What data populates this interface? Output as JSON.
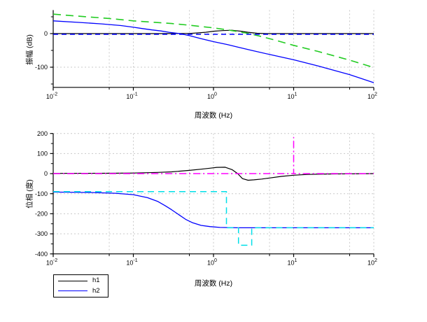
{
  "figure": {
    "background": "#ffffff",
    "xlabel": "周波数 (Hz)",
    "mag_ylabel": "振幅 (dB)",
    "phase_ylabel": "位相 (度)"
  },
  "legend": {
    "position": "below-left",
    "entries": [
      {
        "label": "h1",
        "color": "#000000",
        "style": "solid"
      },
      {
        "label": "h2",
        "color": "#0000ff",
        "style": "solid"
      }
    ]
  },
  "colors": {
    "axis": "#000000",
    "grid": "#c9c9c9",
    "h1": "#000000",
    "h2": "#0000ff",
    "mag_model_green": "#22cc22",
    "mag_model_blue": "#0000ff",
    "phase_model_magenta": "#ff00ff",
    "phase_model_cyan": "#00dfe8"
  },
  "chart_data": [
    {
      "type": "line",
      "subplot": "magnitude",
      "title": "",
      "xlabel": "周波数 (Hz)",
      "ylabel": "振幅 (dB)",
      "xscale": "log",
      "xlim": [
        0.01,
        100
      ],
      "ylim": [
        -160,
        70
      ],
      "grid": true,
      "xticks": [
        {
          "value": 0.01,
          "base": "10",
          "exp": "-2"
        },
        {
          "value": 0.1,
          "base": "10",
          "exp": "-1"
        },
        {
          "value": 1,
          "base": "10",
          "exp": "0"
        },
        {
          "value": 10,
          "base": "10",
          "exp": "1"
        },
        {
          "value": 100,
          "base": "10",
          "exp": "2"
        }
      ],
      "xticks_minor": [
        0.05,
        0.5,
        5,
        50
      ],
      "yticks": [
        {
          "value": 0,
          "label": "0"
        },
        {
          "value": -100,
          "label": "-100"
        }
      ],
      "yticks_minor": [
        50,
        -50,
        -150
      ],
      "grid_x": [
        0.05,
        0.1,
        0.5,
        1,
        5,
        10,
        50,
        100
      ],
      "grid_y": [
        0,
        -100
      ],
      "series": [
        {
          "name": "h1",
          "color": "#000000",
          "dash": null,
          "width": 1.2,
          "points": [
            [
              0.01,
              0
            ],
            [
              0.2,
              0
            ],
            [
              0.5,
              0.5
            ],
            [
              0.8,
              4
            ],
            [
              1.0,
              7
            ],
            [
              1.3,
              9
            ],
            [
              1.7,
              10
            ],
            [
              2.2,
              7
            ],
            [
              2.7,
              4
            ],
            [
              3.5,
              1
            ],
            [
              4.5,
              0
            ],
            [
              10,
              0
            ],
            [
              100,
              0
            ]
          ]
        },
        {
          "name": "h2",
          "color": "#0000ff",
          "dash": null,
          "width": 1.3,
          "points": [
            [
              0.01,
              38
            ],
            [
              0.02,
              33.5
            ],
            [
              0.04,
              29
            ],
            [
              0.07,
              24
            ],
            [
              0.1,
              19
            ],
            [
              0.13,
              15
            ],
            [
              0.17,
              11
            ],
            [
              0.22,
              8
            ],
            [
              0.28,
              4
            ],
            [
              0.38,
              0
            ],
            [
              0.5,
              -6
            ],
            [
              0.7,
              -15
            ],
            [
              1,
              -24
            ],
            [
              1.5,
              -33
            ],
            [
              2,
              -40
            ],
            [
              3,
              -50
            ],
            [
              5,
              -62
            ],
            [
              10,
              -78
            ],
            [
              20,
              -96
            ],
            [
              50,
              -122
            ],
            [
              100,
              -146
            ]
          ]
        },
        {
          "name": "model-green-dashed",
          "color": "#22cc22",
          "dash": "11,7",
          "width": 1.6,
          "points": [
            [
              0.01,
              58
            ],
            [
              0.02,
              52
            ],
            [
              0.05,
              45
            ],
            [
              0.1,
              38
            ],
            [
              0.2,
              33
            ],
            [
              0.3,
              30
            ],
            [
              0.5,
              25
            ],
            [
              0.7,
              21
            ],
            [
              1,
              17
            ],
            [
              1.5,
              11
            ],
            [
              2,
              6
            ],
            [
              2.8,
              0
            ],
            [
              4,
              -9
            ],
            [
              6,
              -20
            ],
            [
              10,
              -35
            ],
            [
              20,
              -53
            ],
            [
              50,
              -79
            ],
            [
              100,
              -101
            ]
          ]
        },
        {
          "name": "model-blue-dashed",
          "color": "#0000ff",
          "dash": "7,5",
          "width": 1.4,
          "points": [
            [
              0.01,
              -2
            ],
            [
              100,
              -2
            ]
          ]
        }
      ]
    },
    {
      "type": "line",
      "subplot": "phase",
      "title": "",
      "xlabel": "周波数 (Hz)",
      "ylabel": "位相 (度)",
      "xscale": "log",
      "xlim": [
        0.01,
        100
      ],
      "ylim": [
        -400,
        200
      ],
      "grid": true,
      "xticks": [
        {
          "value": 0.01,
          "base": "10",
          "exp": "-2"
        },
        {
          "value": 0.1,
          "base": "10",
          "exp": "-1"
        },
        {
          "value": 1,
          "base": "10",
          "exp": "0"
        },
        {
          "value": 10,
          "base": "10",
          "exp": "1"
        },
        {
          "value": 100,
          "base": "10",
          "exp": "2"
        }
      ],
      "xticks_minor": [
        0.05,
        0.5,
        5,
        50
      ],
      "yticks": [
        {
          "value": 200,
          "label": "200"
        },
        {
          "value": 100,
          "label": "100"
        },
        {
          "value": 0,
          "label": "0"
        },
        {
          "value": -100,
          "label": "-100"
        },
        {
          "value": -200,
          "label": "-200"
        },
        {
          "value": -300,
          "label": "-300"
        },
        {
          "value": -400,
          "label": "-400"
        }
      ],
      "yticks_minor": [
        150,
        50,
        -50,
        -150,
        -250,
        -350
      ],
      "grid_x": [
        0.05,
        0.1,
        0.5,
        1,
        5,
        10,
        50,
        100
      ],
      "grid_y": [
        200,
        100,
        0,
        -100,
        -200,
        -300
      ],
      "series": [
        {
          "name": "h1",
          "color": "#000000",
          "dash": null,
          "width": 1.2,
          "points": [
            [
              0.01,
              1
            ],
            [
              0.05,
              2
            ],
            [
              0.1,
              3
            ],
            [
              0.2,
              6
            ],
            [
              0.3,
              9
            ],
            [
              0.5,
              16
            ],
            [
              0.7,
              22
            ],
            [
              0.9,
              27
            ],
            [
              1.1,
              31
            ],
            [
              1.4,
              32
            ],
            [
              1.7,
              20
            ],
            [
              2.0,
              0
            ],
            [
              2.3,
              -25
            ],
            [
              2.7,
              -33
            ],
            [
              3.2,
              -31
            ],
            [
              4,
              -27
            ],
            [
              5,
              -22
            ],
            [
              7,
              -14
            ],
            [
              10,
              -8
            ],
            [
              15,
              -4
            ],
            [
              25,
              -2
            ],
            [
              50,
              -1
            ],
            [
              100,
              0
            ]
          ]
        },
        {
          "name": "h2",
          "color": "#0000ff",
          "dash": null,
          "width": 1.3,
          "points": [
            [
              0.01,
              -92
            ],
            [
              0.03,
              -94
            ],
            [
              0.06,
              -98
            ],
            [
              0.1,
              -105
            ],
            [
              0.15,
              -120
            ],
            [
              0.2,
              -138
            ],
            [
              0.25,
              -160
            ],
            [
              0.3,
              -180
            ],
            [
              0.37,
              -205
            ],
            [
              0.45,
              -228
            ],
            [
              0.55,
              -245
            ],
            [
              0.7,
              -258
            ],
            [
              0.9,
              -264
            ],
            [
              1.2,
              -268
            ],
            [
              2,
              -270
            ],
            [
              10,
              -270
            ],
            [
              100,
              -270
            ]
          ]
        },
        {
          "name": "model-magenta-dashed",
          "color": "#ff00ff",
          "dash": "10,4,2,4",
          "width": 1.5,
          "points": [
            [
              0.01,
              0
            ],
            [
              10,
              0
            ],
            [
              10,
              180
            ],
            [
              10,
              0
            ],
            [
              100,
              0
            ]
          ]
        },
        {
          "name": "model-cyan-dashed",
          "color": "#00dfe8",
          "dash": "9,6",
          "width": 1.5,
          "points": [
            [
              0.01,
              -90
            ],
            [
              1.45,
              -90
            ],
            [
              1.45,
              -270
            ],
            [
              2.05,
              -270
            ],
            [
              2.05,
              -357
            ],
            [
              3.0,
              -357
            ],
            [
              3.0,
              -270
            ],
            [
              100,
              -270
            ]
          ]
        }
      ]
    }
  ]
}
